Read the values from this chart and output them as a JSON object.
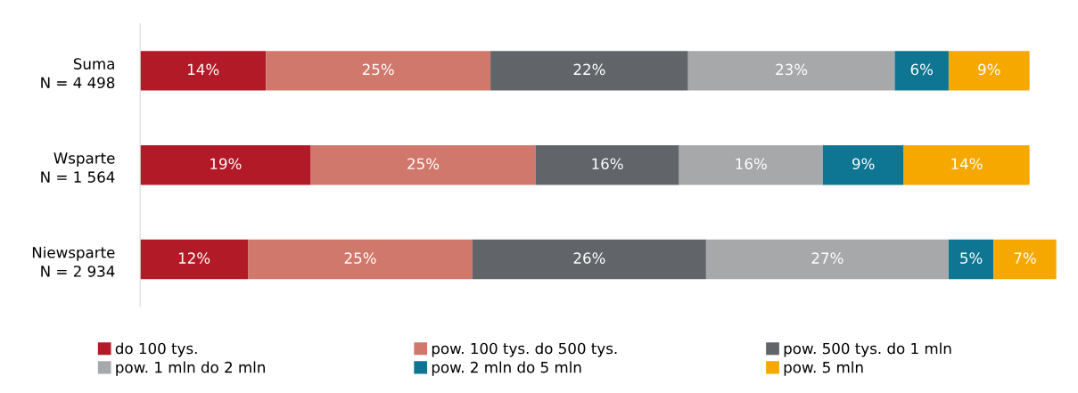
{
  "chart_data": {
    "type": "bar",
    "orientation": "horizontal",
    "stacked": true,
    "legend": "bottom",
    "grid": false,
    "categories": [
      "Suma\nN = 4 498",
      "Wsparte\nN = 1 564",
      "Niewsparte\nN = 2 934"
    ],
    "series": [
      {
        "name": "do 100 tys.",
        "color": "#b31a28",
        "values": [
          14,
          19,
          12
        ],
        "value_labels": [
          "14%",
          "19%",
          "12%"
        ]
      },
      {
        "name": "pow. 100 tys. do 500 tys.",
        "color": "#d0786c",
        "values": [
          25,
          25,
          25
        ],
        "value_labels": [
          "25%",
          "25%",
          "25%"
        ]
      },
      {
        "name": "pow. 500 tys. do 1 mln",
        "color": "#616569",
        "values": [
          22,
          16,
          26
        ],
        "value_labels": [
          "22%",
          "16%",
          "26%"
        ]
      },
      {
        "name": "pow. 1 mln do 2 mln",
        "color": "#a6a8aa",
        "values": [
          23,
          16,
          27
        ],
        "value_labels": [
          "23%",
          "16%",
          "27%"
        ]
      },
      {
        "name": "pow. 2 mln do 5 mln",
        "color": "#0e7592",
        "values": [
          6,
          9,
          5
        ],
        "value_labels": [
          "6%",
          "9%",
          "5%"
        ]
      },
      {
        "name": "pow. 5 mln",
        "color": "#f6a800",
        "values": [
          9,
          14,
          7
        ],
        "value_labels": [
          "9%",
          "14%",
          "7%"
        ]
      }
    ]
  }
}
